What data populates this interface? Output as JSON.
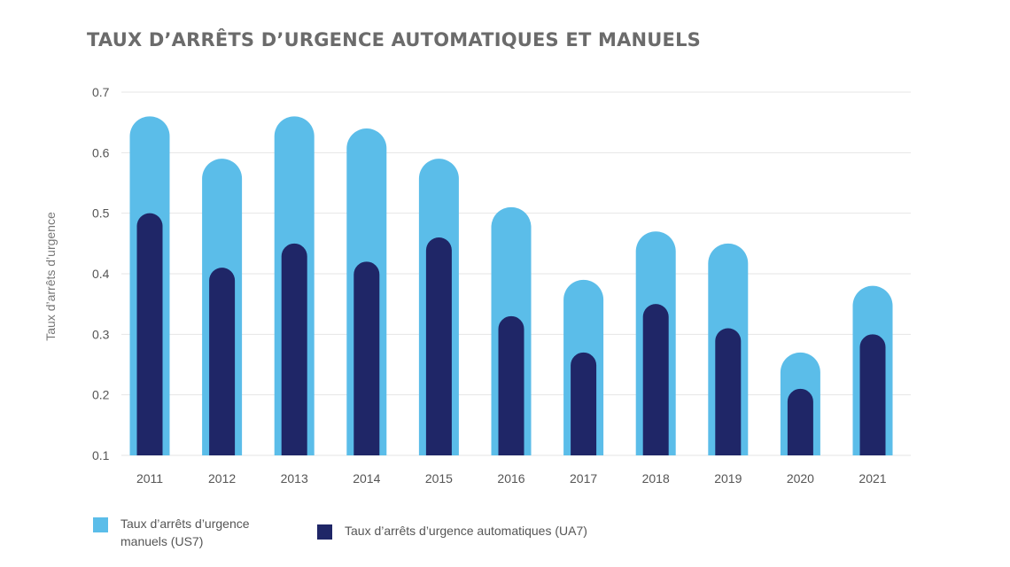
{
  "title": "TAUX D’ARRÊTS D’URGENCE AUTOMATIQUES ET MANUELS",
  "chart_data": {
    "type": "bar",
    "title": "TAUX D’ARRÊTS D’URGENCE AUTOMATIQUES ET MANUELS",
    "xlabel": "",
    "ylabel": "Taux d’arrêts d’urgence",
    "ylim": [
      0.1,
      0.7
    ],
    "yticks": [
      0.1,
      0.2,
      0.3,
      0.4,
      0.5,
      0.6,
      0.7
    ],
    "ytick_labels": [
      "0.1",
      "0.2",
      "0.3",
      "0.4",
      "0.5",
      "0.6",
      "0.7"
    ],
    "grid": true,
    "legend_position": "bottom-left",
    "categories": [
      "2011",
      "2012",
      "2013",
      "2014",
      "2015",
      "2016",
      "2017",
      "2018",
      "2019",
      "2020",
      "2021"
    ],
    "series": [
      {
        "name": "Taux d’arrêts d’urgence manuels (US7)",
        "color": "#5bbde9",
        "values": [
          0.66,
          0.59,
          0.66,
          0.64,
          0.59,
          0.51,
          0.39,
          0.47,
          0.45,
          0.27,
          0.38
        ]
      },
      {
        "name": "Taux d’arrêts d’urgence automatiques (UA7)",
        "color": "#1f2667",
        "values": [
          0.5,
          0.41,
          0.45,
          0.42,
          0.46,
          0.33,
          0.27,
          0.35,
          0.31,
          0.21,
          0.3
        ]
      }
    ]
  },
  "colors": {
    "grid": "#e6e6e6",
    "title": "#6b6b6b",
    "text": "#555555"
  }
}
